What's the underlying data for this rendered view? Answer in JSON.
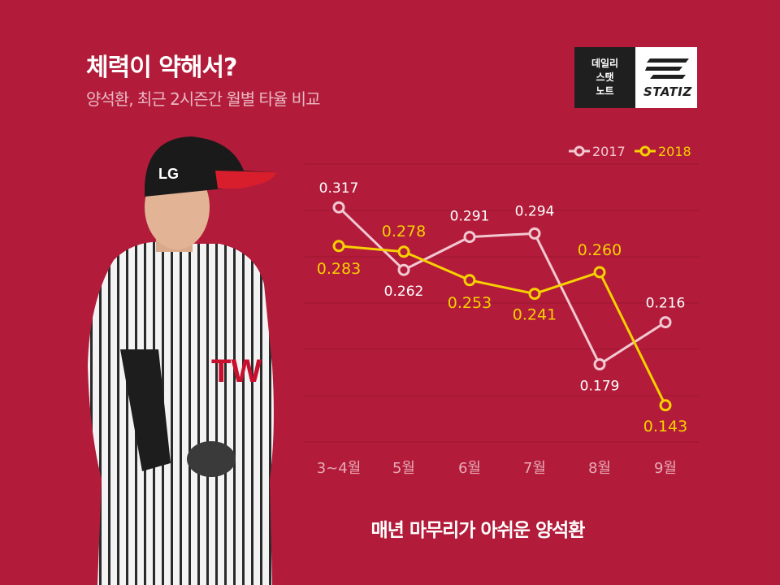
{
  "header": {
    "title": "체력이 약해서?",
    "subtitle": "양석환, 최근 2시즌간 월별 타율 비교"
  },
  "logo": {
    "left_lines": [
      "데일리",
      "스탯",
      "노트"
    ],
    "brand": "STATIZ"
  },
  "caption": "매년 마무리가 아쉬운 양석환",
  "colors": {
    "background": "#b21c3a",
    "series_2017": "#f2c8d1",
    "series_2018": "#f7d100",
    "gridline": "#9a1530",
    "axis_label": "#e7a9b6"
  },
  "chart_data": {
    "type": "line",
    "categories": [
      "3~4월",
      "5월",
      "6월",
      "7월",
      "8월",
      "9월"
    ],
    "series": [
      {
        "name": "2017",
        "values": [
          0.317,
          0.262,
          0.291,
          0.294,
          0.179,
          0.216
        ],
        "labels": [
          "0.317",
          "0.262",
          "0.291",
          "0.294",
          "0.179",
          "0.216"
        ]
      },
      {
        "name": "2018",
        "values": [
          0.283,
          0.278,
          0.253,
          0.241,
          0.26,
          0.143
        ],
        "labels": [
          "0.283",
          "0.278",
          "0.253",
          "0.241",
          "0.260",
          "0.143"
        ]
      }
    ],
    "ylim": [
      0.11,
      0.36
    ],
    "grid": true,
    "legend": "top-right"
  }
}
